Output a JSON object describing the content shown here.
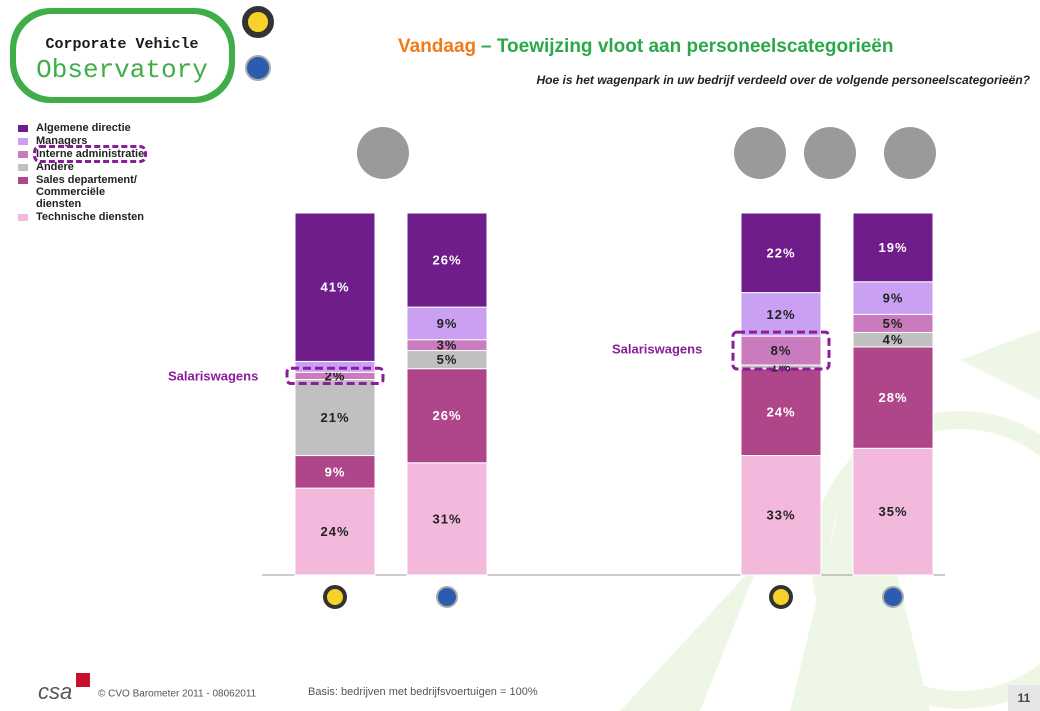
{
  "logo": {
    "line1": "Corporate Vehicle",
    "line2": "Observatory"
  },
  "footer": {
    "brand": "csa",
    "copyright": "© CVO Barometer 2011 - 08062011",
    "basis": "Basis: bedrijven met bedrijfsvoertuigen = 100%",
    "page": "11"
  },
  "chart_data": {
    "type": "stacked_bar",
    "title_lead": "Vandaag",
    "title": "– Toewijzing vloot aan personeelscategorieën",
    "subtitle": "Hoe is het wagenpark in uw bedrijf verdeeld over de volgende personeelscategorieën?",
    "annotations": [
      "Salariswagens",
      "Salariswagens"
    ],
    "categories": [
      null,
      null,
      null,
      null
    ],
    "ylim": [
      0,
      100
    ],
    "series": [
      {
        "name": "Algemene directie",
        "color": "#6f1d8a",
        "values": [
          41,
          26,
          22,
          19
        ],
        "value_labels": [
          "41%",
          "26%",
          "22%",
          "19%"
        ]
      },
      {
        "name": "Managers",
        "color": "#c9a0f2",
        "values": [
          3,
          9,
          12,
          9
        ],
        "value_labels": [
          null,
          "9%",
          "12%",
          "9%"
        ]
      },
      {
        "name": "Interne administratie",
        "color": "#c97bbd",
        "values": [
          2,
          3,
          8,
          5
        ],
        "value_labels": [
          "2%",
          "3%",
          "8%",
          "5%"
        ]
      },
      {
        "name": "Andere",
        "color": "#c0c0c0",
        "values": [
          21,
          5,
          1,
          4
        ],
        "value_labels": [
          "21%",
          "5%",
          "1%",
          "4%"
        ]
      },
      {
        "name": "Sales departement/ Commerciële diensten",
        "color": "#b0468a",
        "values": [
          9,
          26,
          24,
          28
        ],
        "value_labels": [
          "9%",
          "26%",
          "24%",
          "28%"
        ]
      },
      {
        "name": "Technische diensten",
        "color": "#f2b9dd",
        "values": [
          24,
          31,
          33,
          35
        ],
        "value_labels": [
          "24%",
          "31%",
          "33%",
          "35%"
        ]
      }
    ]
  }
}
